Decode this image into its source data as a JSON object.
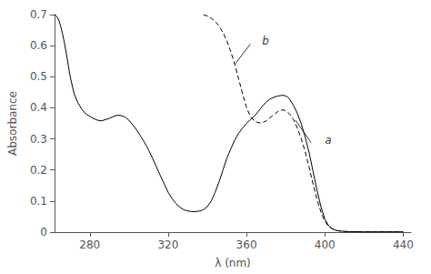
{
  "chart_data": {
    "type": "line",
    "xlabel": "λ (nm)",
    "ylabel": "Absorbance",
    "xlim": [
      262,
      444
    ],
    "ylim": [
      0.0,
      0.7
    ],
    "xticks": [
      280,
      320,
      360,
      400,
      440
    ],
    "yticks": [
      0.0,
      0.1,
      0.2,
      0.3,
      0.4,
      0.5,
      0.6,
      0.7
    ],
    "grid": false,
    "color": "#000000",
    "series": [
      {
        "line_style": "solid",
        "x": [
          262,
          263,
          264,
          265,
          266,
          267,
          268,
          270,
          272,
          274,
          276,
          278,
          280,
          282,
          284,
          286,
          288,
          290,
          292,
          294,
          296,
          298,
          300,
          302,
          304,
          306,
          308,
          310,
          312,
          314,
          316,
          318,
          320,
          322,
          324,
          326,
          328,
          330,
          332,
          334,
          336,
          338,
          340,
          342,
          344,
          346,
          348,
          350,
          352,
          354,
          356,
          358,
          360,
          362,
          364,
          366,
          368,
          370,
          372,
          374,
          376,
          378,
          379,
          380,
          381,
          382,
          384,
          386,
          388,
          390,
          392,
          394,
          396,
          398,
          400,
          402,
          404,
          406,
          410,
          420,
          440
        ],
        "values": [
          0.7,
          0.695,
          0.685,
          0.665,
          0.64,
          0.61,
          0.575,
          0.5,
          0.445,
          0.415,
          0.395,
          0.38,
          0.373,
          0.365,
          0.36,
          0.358,
          0.362,
          0.366,
          0.372,
          0.376,
          0.375,
          0.37,
          0.36,
          0.345,
          0.328,
          0.308,
          0.288,
          0.265,
          0.238,
          0.21,
          0.182,
          0.155,
          0.128,
          0.108,
          0.092,
          0.08,
          0.072,
          0.068,
          0.066,
          0.066,
          0.068,
          0.072,
          0.082,
          0.1,
          0.128,
          0.162,
          0.2,
          0.238,
          0.268,
          0.296,
          0.318,
          0.335,
          0.35,
          0.362,
          0.373,
          0.388,
          0.404,
          0.418,
          0.428,
          0.434,
          0.438,
          0.44,
          0.44,
          0.438,
          0.435,
          0.428,
          0.408,
          0.382,
          0.348,
          0.305,
          0.255,
          0.195,
          0.135,
          0.082,
          0.042,
          0.02,
          0.01,
          0.005,
          0.002,
          0.001,
          0.001
        ]
      },
      {
        "line_style": "dashed",
        "x": [
          338,
          340,
          342,
          344,
          346,
          348,
          350,
          352,
          354,
          356,
          358,
          360,
          362,
          364,
          366,
          368,
          370,
          372,
          374,
          376,
          378,
          379,
          380,
          381,
          382,
          384,
          386,
          388,
          390,
          392,
          394,
          396,
          398,
          400,
          402,
          404,
          406,
          410,
          420,
          440
        ],
        "values": [
          0.7,
          0.695,
          0.688,
          0.678,
          0.663,
          0.642,
          0.615,
          0.58,
          0.54,
          0.493,
          0.445,
          0.402,
          0.372,
          0.358,
          0.352,
          0.352,
          0.358,
          0.368,
          0.378,
          0.388,
          0.393,
          0.393,
          0.39,
          0.386,
          0.38,
          0.362,
          0.335,
          0.3,
          0.258,
          0.208,
          0.155,
          0.105,
          0.065,
          0.035,
          0.018,
          0.01,
          0.005,
          0.002,
          0.001,
          0.001
        ]
      }
    ],
    "annotations": [
      {
        "text": "a",
        "x": 400,
        "y": 0.295,
        "line_x": [
          393,
          385
        ],
        "line_y": [
          0.288,
          0.36
        ]
      },
      {
        "text": "b",
        "x": 368,
        "y": 0.615,
        "line_x": [
          362,
          354
        ],
        "line_y": [
          0.605,
          0.54
        ]
      }
    ]
  }
}
